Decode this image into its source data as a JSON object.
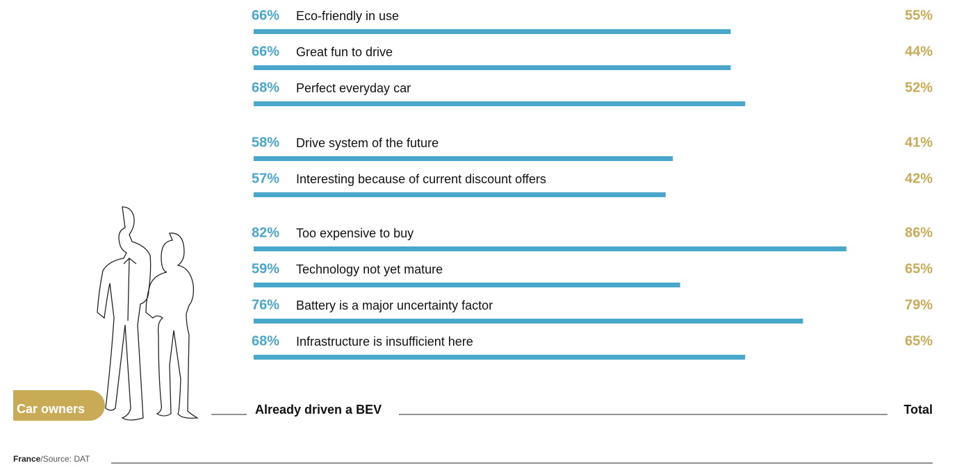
{
  "chart_data": {
    "type": "bar",
    "categories": [
      "Eco-friendly in use",
      "Great fun to drive",
      "Perfect everyday car",
      "Drive system of the future",
      "Interesting because of current discount offers",
      "Too expensive to buy",
      "Technology not yet mature",
      "Battery is a major uncertainty factor",
      "Infrastructure is insufficient here"
    ],
    "series": [
      {
        "name": "Already driven a BEV",
        "color": "#4aa7cc",
        "values": [
          66,
          66,
          68,
          58,
          57,
          82,
          59,
          76,
          68
        ],
        "value_labels": [
          "66%",
          "66%",
          "68%",
          "58%",
          "57%",
          "82%",
          "59%",
          "76%",
          "68%"
        ]
      },
      {
        "name": "Total",
        "color": "#c9aa55",
        "values": [
          55,
          44,
          52,
          41,
          42,
          86,
          65,
          79,
          65
        ],
        "value_labels": [
          "55%",
          "44%",
          "52%",
          "41%",
          "42%",
          "86%",
          "65%",
          "79%",
          "65%"
        ]
      }
    ],
    "group_label": "Car owners",
    "source_country": "France",
    "source": "/Source: DAT"
  }
}
